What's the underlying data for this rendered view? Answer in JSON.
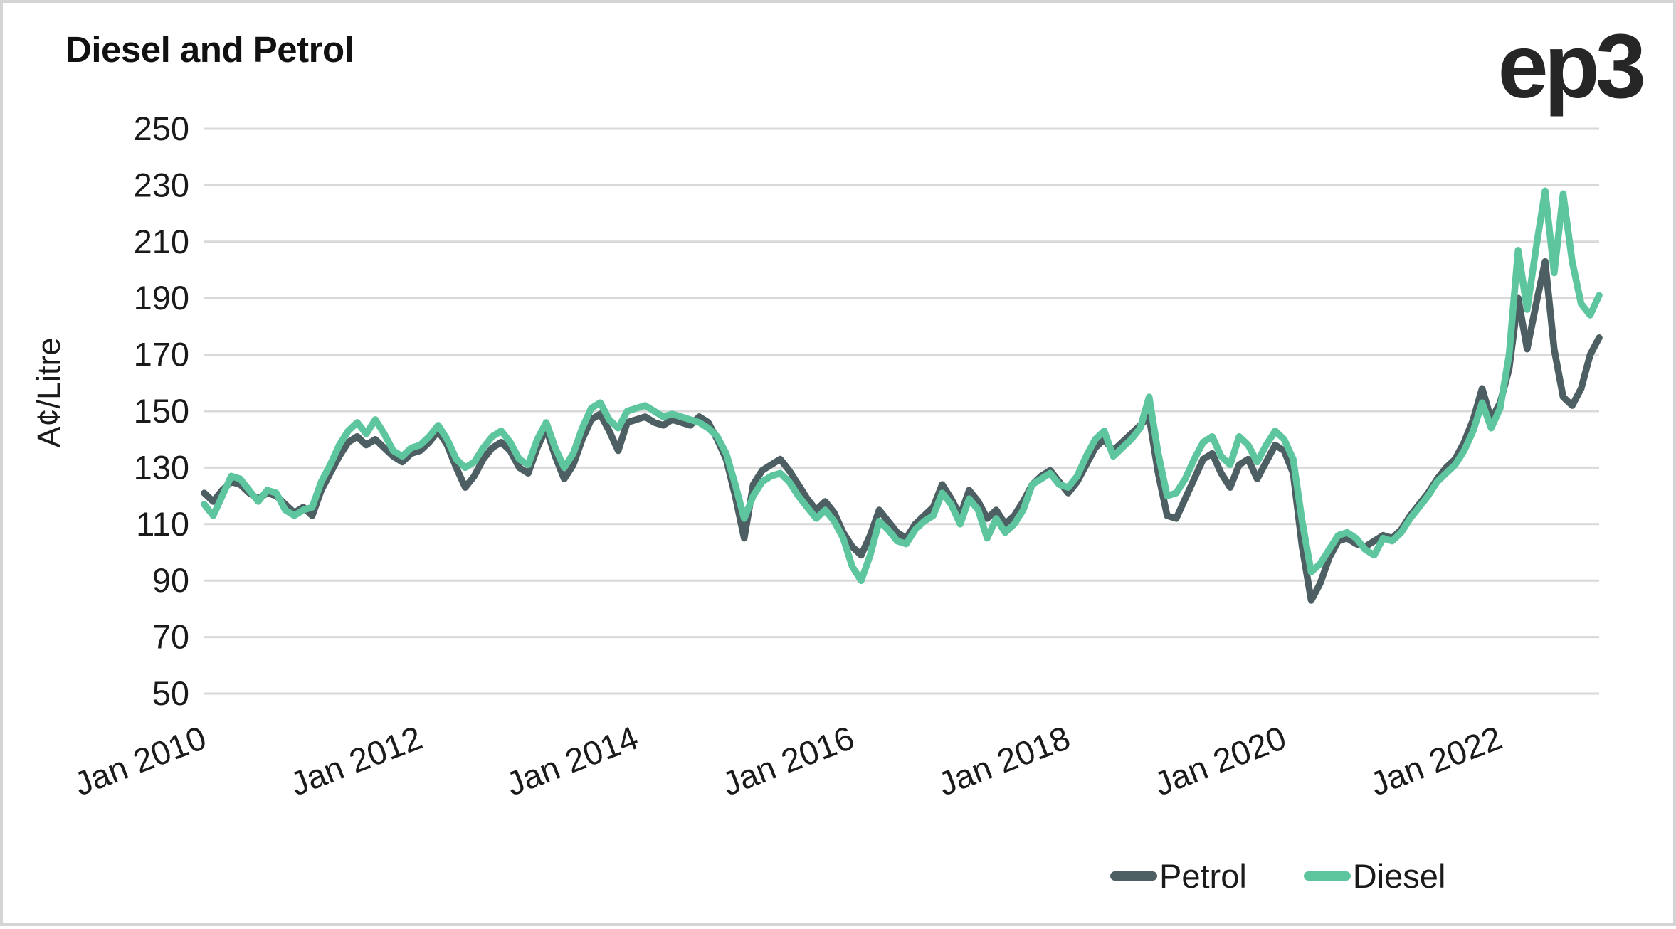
{
  "header": {
    "title": "Diesel and Petrol",
    "logo": "ep3"
  },
  "legend": {
    "items": [
      {
        "label": "Petrol",
        "color": "#4d5f63"
      },
      {
        "label": "Diesel",
        "color": "#5ec69e"
      }
    ]
  },
  "colors": {
    "petrol": "#4d5f63",
    "diesel": "#5ec69e",
    "gridline": "#d9d9d9",
    "text": "#1a1a1a"
  },
  "chart_data": {
    "type": "line",
    "title": "Diesel and Petrol",
    "xlabel": "",
    "ylabel": "A¢/Litre",
    "ylim": [
      50,
      250
    ],
    "yticks": [
      50,
      70,
      90,
      110,
      130,
      150,
      170,
      190,
      210,
      230,
      250
    ],
    "grid": "horizontal",
    "legend_position": "bottom-right",
    "frequency": "monthly",
    "x_start": "Jan 2010",
    "x_end": "Dec 2022",
    "xticklabels": [
      "Jan 2010",
      "Jan 2012",
      "Jan 2014",
      "Jan 2016",
      "Jan 2018",
      "Jan 2020",
      "Jan 2022"
    ],
    "xtick_every_points": 24,
    "series": [
      {
        "name": "Petrol",
        "color": "#4d5f63",
        "values": [
          121,
          118,
          122,
          125,
          124,
          121,
          119,
          121,
          120,
          117,
          114,
          116,
          113,
          122,
          128,
          134,
          139,
          141,
          138,
          140,
          137,
          134,
          132,
          135,
          136,
          139,
          143,
          138,
          130,
          123,
          127,
          133,
          137,
          139,
          136,
          130,
          128,
          137,
          144,
          134,
          126,
          131,
          140,
          147,
          149,
          143,
          136,
          146,
          147,
          148,
          146,
          145,
          147,
          146,
          145,
          148,
          146,
          140,
          133,
          120,
          105,
          124,
          129,
          131,
          133,
          129,
          124,
          119,
          115,
          118,
          114,
          107,
          102,
          99,
          106,
          115,
          111,
          107,
          105,
          110,
          113,
          116,
          124,
          119,
          113,
          122,
          118,
          112,
          115,
          110,
          113,
          118,
          124,
          127,
          129,
          125,
          121,
          125,
          131,
          137,
          140,
          136,
          139,
          142,
          145,
          148,
          128,
          113,
          112,
          119,
          126,
          133,
          135,
          128,
          123,
          131,
          133,
          126,
          132,
          138,
          136,
          128,
          102,
          83,
          89,
          98,
          104,
          105,
          103,
          102,
          104,
          106,
          105,
          108,
          113,
          117,
          121,
          126,
          130,
          133,
          139,
          147,
          158,
          147,
          153,
          165,
          190,
          172,
          188,
          203,
          172,
          155,
          152,
          158,
          170,
          176
        ]
      },
      {
        "name": "Diesel",
        "color": "#5ec69e",
        "values": [
          117,
          113,
          120,
          127,
          126,
          122,
          118,
          122,
          121,
          115,
          113,
          115,
          116,
          125,
          131,
          138,
          143,
          146,
          142,
          147,
          142,
          136,
          134,
          137,
          138,
          141,
          145,
          140,
          133,
          130,
          132,
          137,
          141,
          143,
          139,
          133,
          131,
          140,
          146,
          137,
          130,
          135,
          144,
          151,
          153,
          147,
          144,
          150,
          151,
          152,
          150,
          148,
          149,
          148,
          147,
          146,
          144,
          141,
          135,
          124,
          112,
          120,
          125,
          127,
          128,
          125,
          120,
          116,
          112,
          115,
          111,
          105,
          95,
          90,
          99,
          111,
          108,
          104,
          103,
          108,
          111,
          113,
          121,
          117,
          110,
          119,
          115,
          105,
          112,
          107,
          110,
          115,
          124,
          126,
          128,
          124,
          123,
          127,
          134,
          140,
          143,
          134,
          137,
          140,
          144,
          155,
          135,
          120,
          121,
          126,
          133,
          139,
          141,
          134,
          131,
          141,
          138,
          132,
          138,
          143,
          140,
          133,
          111,
          93,
          96,
          101,
          106,
          107,
          105,
          101,
          99,
          105,
          104,
          107,
          112,
          116,
          120,
          125,
          128,
          131,
          136,
          143,
          153,
          144,
          151,
          170,
          207,
          186,
          208,
          228,
          199,
          227,
          203,
          188,
          184,
          191
        ]
      }
    ]
  }
}
